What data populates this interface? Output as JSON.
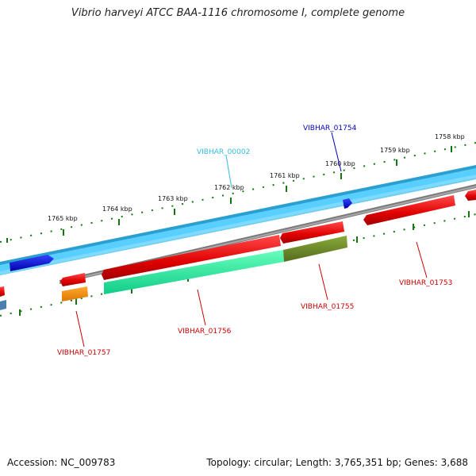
{
  "title": "Vibrio harveyi ATCC BAA-1116 chromosome I, complete genome",
  "footer": {
    "accession": "Accession: NC_009783",
    "summary": "Topology: circular; Length: 3,765,351 bp; Genes: 3,688"
  },
  "scale_ticks": [
    "1765 kbp",
    "1764 kbp",
    "1763 kbp",
    "1762 kbp",
    "1761 kbp",
    "1760 kbp",
    "1759 kbp",
    "1758 kbp"
  ],
  "genes": [
    {
      "name": "VIBHAR_00002",
      "color": "#33bbe0"
    },
    {
      "name": "VIBHAR_01754",
      "color": "#0000bb"
    },
    {
      "name": "VIBHAR_01753",
      "color": "#cc0000"
    },
    {
      "name": "VIBHAR_01755",
      "color": "#cc0000"
    },
    {
      "name": "VIBHAR_01756",
      "color": "#cc0000"
    },
    {
      "name": "VIBHAR_01757",
      "color": "#cc0000"
    }
  ],
  "colors": {
    "forward_track": "#2a9fd0",
    "forward_track_light": "#58cfff",
    "backbone": "#7a7a7a",
    "cds": "#ee1111",
    "rna": "#22ee99",
    "rna_overlap": "#6b8e23",
    "misc": "#ff8800",
    "small_gene": "#0000ee",
    "ticks": "#117711"
  }
}
